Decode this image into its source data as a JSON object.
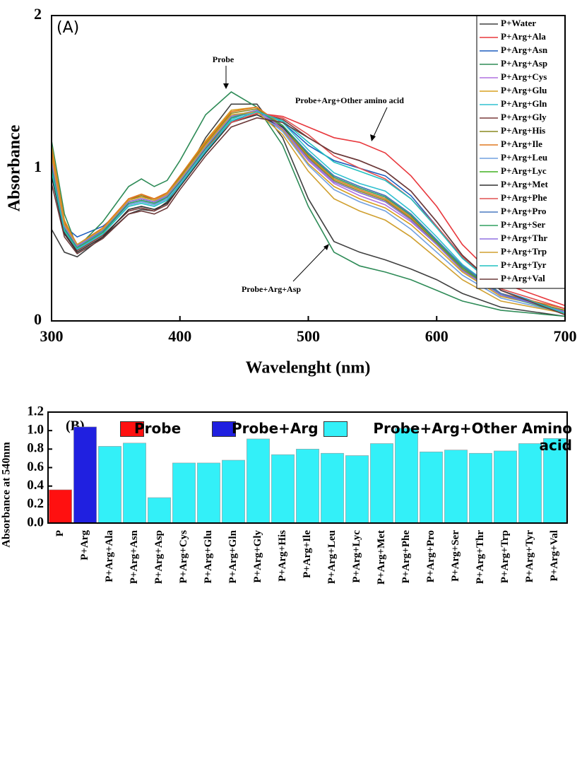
{
  "chart_data": [
    {
      "type": "line",
      "annotations": [
        "(A)",
        "Probe",
        "Probe+Arg+Other amino acid",
        "Probe+Arg+Asp"
      ],
      "xlabel": "Wavelenght (nm)",
      "ylabel": "Absorbance",
      "xlim": [
        300,
        700
      ],
      "xticks": [
        300,
        400,
        500,
        600,
        700
      ],
      "ylim": [
        0,
        2
      ],
      "yticks": [
        0,
        1,
        2
      ],
      "x": [
        300,
        310,
        320,
        340,
        360,
        370,
        380,
        390,
        400,
        420,
        440,
        460,
        480,
        500,
        520,
        540,
        560,
        580,
        600,
        620,
        650,
        700
      ],
      "series": [
        {
          "name": "P+Water",
          "color": "#404040",
          "values": [
            0.6,
            0.45,
            0.42,
            0.55,
            0.7,
            0.73,
            0.72,
            0.78,
            0.9,
            1.2,
            1.42,
            1.42,
            1.2,
            0.8,
            0.52,
            0.45,
            0.4,
            0.34,
            0.27,
            0.18,
            0.09,
            0.03
          ]
        },
        {
          "name": "P+Arg+Ala",
          "color": "#e8383d",
          "values": [
            1.1,
            0.65,
            0.5,
            0.6,
            0.8,
            0.82,
            0.8,
            0.83,
            0.95,
            1.15,
            1.3,
            1.36,
            1.34,
            1.27,
            1.2,
            1.17,
            1.1,
            0.95,
            0.75,
            0.5,
            0.25,
            0.1
          ]
        },
        {
          "name": "P+Arg+Asn",
          "color": "#1f5fbf",
          "values": [
            1.05,
            0.62,
            0.55,
            0.62,
            0.76,
            0.78,
            0.76,
            0.8,
            0.9,
            1.12,
            1.3,
            1.38,
            1.3,
            1.15,
            1.05,
            1.0,
            0.95,
            0.82,
            0.62,
            0.42,
            0.2,
            0.06
          ]
        },
        {
          "name": "P+Arg+Asp",
          "color": "#2e8b57",
          "values": [
            1.18,
            0.7,
            0.48,
            0.65,
            0.88,
            0.93,
            0.88,
            0.92,
            1.05,
            1.35,
            1.5,
            1.4,
            1.15,
            0.75,
            0.45,
            0.36,
            0.32,
            0.27,
            0.2,
            0.13,
            0.07,
            0.03
          ]
        },
        {
          "name": "P+Arg+Cys",
          "color": "#b070e0",
          "values": [
            1.0,
            0.6,
            0.47,
            0.58,
            0.78,
            0.8,
            0.78,
            0.82,
            0.92,
            1.15,
            1.33,
            1.37,
            1.25,
            1.05,
            0.9,
            0.82,
            0.76,
            0.65,
            0.5,
            0.33,
            0.17,
            0.06
          ]
        },
        {
          "name": "P+Arg+Glu",
          "color": "#d9a020",
          "values": [
            1.15,
            0.66,
            0.49,
            0.6,
            0.8,
            0.83,
            0.8,
            0.84,
            0.95,
            1.18,
            1.38,
            1.4,
            1.25,
            1.03,
            0.88,
            0.8,
            0.74,
            0.63,
            0.48,
            0.32,
            0.16,
            0.07
          ]
        },
        {
          "name": "P+Arg+Gln",
          "color": "#30c0d0",
          "values": [
            1.0,
            0.6,
            0.48,
            0.58,
            0.77,
            0.79,
            0.77,
            0.8,
            0.9,
            1.12,
            1.32,
            1.38,
            1.3,
            1.12,
            0.97,
            0.9,
            0.85,
            0.72,
            0.55,
            0.37,
            0.18,
            0.06
          ]
        },
        {
          "name": "P+Arg+Gly",
          "color": "#7a3b3b",
          "values": [
            0.95,
            0.58,
            0.46,
            0.56,
            0.72,
            0.74,
            0.72,
            0.76,
            0.88,
            1.1,
            1.3,
            1.36,
            1.32,
            1.2,
            1.1,
            1.05,
            0.98,
            0.85,
            0.65,
            0.43,
            0.2,
            0.05
          ]
        },
        {
          "name": "P+Arg+His",
          "color": "#8a8a20",
          "values": [
            1.1,
            0.64,
            0.5,
            0.6,
            0.79,
            0.82,
            0.79,
            0.83,
            0.94,
            1.16,
            1.36,
            1.39,
            1.27,
            1.07,
            0.92,
            0.85,
            0.79,
            0.67,
            0.51,
            0.34,
            0.17,
            0.07
          ]
        },
        {
          "name": "P+Arg+Ile",
          "color": "#e07820",
          "values": [
            1.12,
            0.65,
            0.5,
            0.61,
            0.8,
            0.83,
            0.8,
            0.84,
            0.95,
            1.17,
            1.37,
            1.4,
            1.28,
            1.08,
            0.93,
            0.86,
            0.8,
            0.68,
            0.52,
            0.35,
            0.18,
            0.08
          ]
        },
        {
          "name": "P+Arg+Leu",
          "color": "#70a0e0",
          "values": [
            1.0,
            0.6,
            0.48,
            0.58,
            0.76,
            0.78,
            0.76,
            0.8,
            0.9,
            1.12,
            1.33,
            1.37,
            1.24,
            1.02,
            0.86,
            0.78,
            0.72,
            0.6,
            0.45,
            0.3,
            0.15,
            0.05
          ]
        },
        {
          "name": "P+Arg+Lyc",
          "color": "#40b020",
          "values": [
            1.05,
            0.62,
            0.5,
            0.6,
            0.78,
            0.8,
            0.78,
            0.82,
            0.92,
            1.14,
            1.34,
            1.38,
            1.26,
            1.06,
            0.91,
            0.84,
            0.78,
            0.66,
            0.5,
            0.33,
            0.17,
            0.06
          ]
        },
        {
          "name": "P+Arg+Met",
          "color": "#303030",
          "values": [
            0.95,
            0.57,
            0.45,
            0.55,
            0.73,
            0.75,
            0.73,
            0.77,
            0.88,
            1.1,
            1.3,
            1.35,
            1.27,
            1.1,
            0.95,
            0.88,
            0.82,
            0.7,
            0.53,
            0.36,
            0.18,
            0.05
          ]
        },
        {
          "name": "P+Arg+Phe",
          "color": "#e05050",
          "values": [
            1.08,
            0.63,
            0.5,
            0.6,
            0.78,
            0.8,
            0.78,
            0.82,
            0.92,
            1.13,
            1.3,
            1.36,
            1.33,
            1.22,
            1.08,
            1.0,
            0.93,
            0.8,
            0.62,
            0.42,
            0.21,
            0.08
          ]
        },
        {
          "name": "P+Arg+Pro",
          "color": "#4a7ac0",
          "values": [
            1.02,
            0.61,
            0.49,
            0.59,
            0.77,
            0.79,
            0.77,
            0.81,
            0.91,
            1.13,
            1.33,
            1.38,
            1.28,
            1.1,
            0.95,
            0.88,
            0.82,
            0.7,
            0.53,
            0.36,
            0.18,
            0.06
          ]
        },
        {
          "name": "P+Arg+Ser",
          "color": "#30a060",
          "values": [
            1.0,
            0.6,
            0.48,
            0.58,
            0.77,
            0.79,
            0.77,
            0.81,
            0.91,
            1.13,
            1.33,
            1.38,
            1.28,
            1.09,
            0.94,
            0.87,
            0.81,
            0.69,
            0.52,
            0.35,
            0.17,
            0.05
          ]
        },
        {
          "name": "P+Arg+Thr",
          "color": "#9070e0",
          "values": [
            1.05,
            0.62,
            0.49,
            0.6,
            0.78,
            0.8,
            0.78,
            0.82,
            0.92,
            1.14,
            1.34,
            1.38,
            1.26,
            1.06,
            0.91,
            0.84,
            0.78,
            0.66,
            0.5,
            0.33,
            0.17,
            0.06
          ]
        },
        {
          "name": "P+Arg+Trp",
          "color": "#d0a030",
          "values": [
            1.08,
            0.63,
            0.5,
            0.6,
            0.79,
            0.81,
            0.79,
            0.83,
            0.93,
            1.15,
            1.35,
            1.37,
            1.22,
            0.98,
            0.8,
            0.72,
            0.66,
            0.55,
            0.41,
            0.27,
            0.13,
            0.05
          ]
        },
        {
          "name": "P+Arg+Tyr",
          "color": "#20c0c0",
          "values": [
            0.98,
            0.59,
            0.47,
            0.57,
            0.75,
            0.77,
            0.75,
            0.79,
            0.89,
            1.11,
            1.31,
            1.37,
            1.31,
            1.17,
            1.04,
            0.98,
            0.92,
            0.8,
            0.61,
            0.41,
            0.2,
            0.05
          ]
        },
        {
          "name": "P+Arg+Val",
          "color": "#6b3a3a",
          "values": [
            0.9,
            0.55,
            0.44,
            0.54,
            0.7,
            0.72,
            0.7,
            0.74,
            0.86,
            1.08,
            1.27,
            1.33,
            1.3,
            1.2,
            1.1,
            1.05,
            0.98,
            0.85,
            0.65,
            0.43,
            0.2,
            0.04
          ]
        }
      ]
    },
    {
      "type": "bar",
      "annotations": [
        "(B)"
      ],
      "ylabel": "Absorbance at 540nm",
      "ylim": [
        0,
        1.2
      ],
      "yticks": [
        {
          "value": 0,
          "label": "0.0"
        },
        0.2,
        0.4,
        0.6,
        0.8,
        {
          "value": 1,
          "label": "1.0"
        },
        1.2
      ],
      "categories": [
        "P",
        "P+Arg",
        "P+Arg+Ala",
        "P+Arg+Asn",
        "P+Arg+Asp",
        "P+Arg+Cys",
        "P+Arg+Glu",
        "P+Arg+Gln",
        "P+Arg+Gly",
        "P+Arg+His",
        "P+Arg+Ile",
        "P+Arg+Leu",
        "P+Arg+Lyc",
        "P+Arg+Met",
        "P+Arg+Phe",
        "P+Arg+Pro",
        "P+Arg+Ser",
        "P+Arg+Thr",
        "P+Arg+Trp",
        "P+Arg+Tyr",
        "P+Arg+Val"
      ],
      "series": [
        {
          "name": "Probe",
          "color": "#ff1010",
          "values": [
            0.36,
            null,
            null,
            null,
            null,
            null,
            null,
            null,
            null,
            null,
            null,
            null,
            null,
            null,
            null,
            null,
            null,
            null,
            null,
            null,
            null
          ]
        },
        {
          "name": "Probe+Arg",
          "color": "#2020e0",
          "values": [
            null,
            1.04,
            null,
            null,
            null,
            null,
            null,
            null,
            null,
            null,
            null,
            null,
            null,
            null,
            null,
            null,
            null,
            null,
            null,
            null,
            null
          ]
        },
        {
          "name": "Probe+Arg+Other Amino acid",
          "color": "#33f0f8",
          "values": [
            null,
            null,
            0.83,
            0.865,
            0.275,
            0.65,
            0.65,
            0.68,
            0.91,
            0.74,
            0.8,
            0.755,
            0.73,
            0.86,
            1.025,
            0.77,
            0.79,
            0.755,
            0.78,
            0.86,
            0.915
          ]
        }
      ]
    }
  ]
}
